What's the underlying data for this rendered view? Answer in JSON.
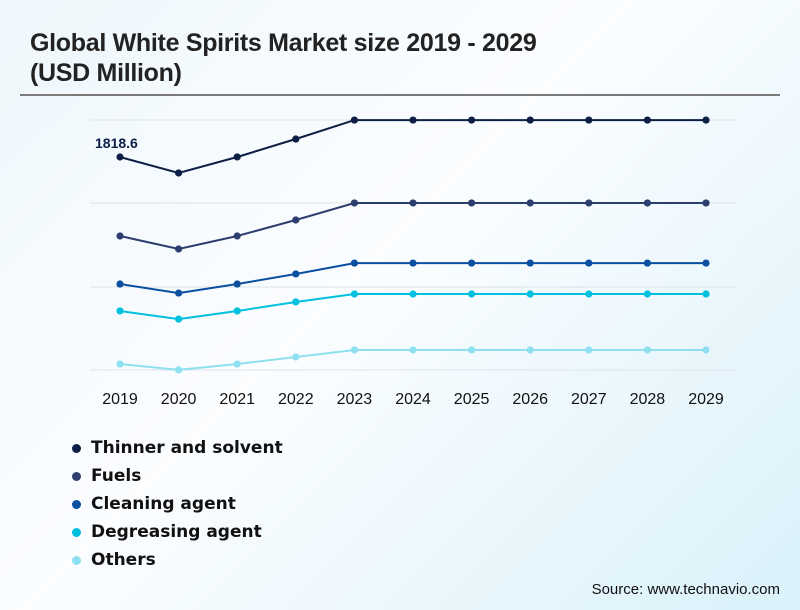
{
  "title_line1": "Global White Spirits Market size 2019 - 2029",
  "title_line2": "(USD Million)",
  "source": "Source: www.technavio.com",
  "chart_data": {
    "type": "line",
    "title": "Global White Spirits Market size 2019 - 2029 (USD Million)",
    "xlabel": "",
    "ylabel": "USD Million",
    "grid": true,
    "legend_position": "bottom-left",
    "x": [
      "2019",
      "2020",
      "2021",
      "2022",
      "2023",
      "2024",
      "2025",
      "2026",
      "2027",
      "2028",
      "2029"
    ],
    "ylim": [
      0,
      2140
    ],
    "annotations": [
      {
        "series": "Thinner and solvent",
        "x": "2019",
        "text": "1818.6"
      }
    ],
    "series": [
      {
        "name": "Thinner and solvent",
        "color": "#0d1f45",
        "values": [
          1818.6,
          1682,
          1819,
          1972,
          2134,
          2134,
          2134,
          2134,
          2134,
          2134,
          2134
        ]
      },
      {
        "name": "Fuels",
        "color": "#2c3e6e",
        "values": [
          1144,
          1033,
          1144,
          1281,
          1426,
          1426,
          1426,
          1426,
          1426,
          1426,
          1426
        ]
      },
      {
        "name": "Cleaning agent",
        "color": "#0b4fa0",
        "values": [
          734,
          657,
          734,
          820,
          913,
          913,
          913,
          913,
          913,
          913,
          913
        ]
      },
      {
        "name": "Degreasing agent",
        "color": "#00c0e0",
        "values": [
          504,
          435,
          504,
          581,
          649,
          649,
          649,
          649,
          649,
          649,
          649
        ]
      },
      {
        "name": "Others",
        "color": "#8ee0f0",
        "values": [
          51,
          1,
          51,
          111,
          171,
          171,
          171,
          171,
          171,
          171,
          171
        ]
      }
    ]
  }
}
